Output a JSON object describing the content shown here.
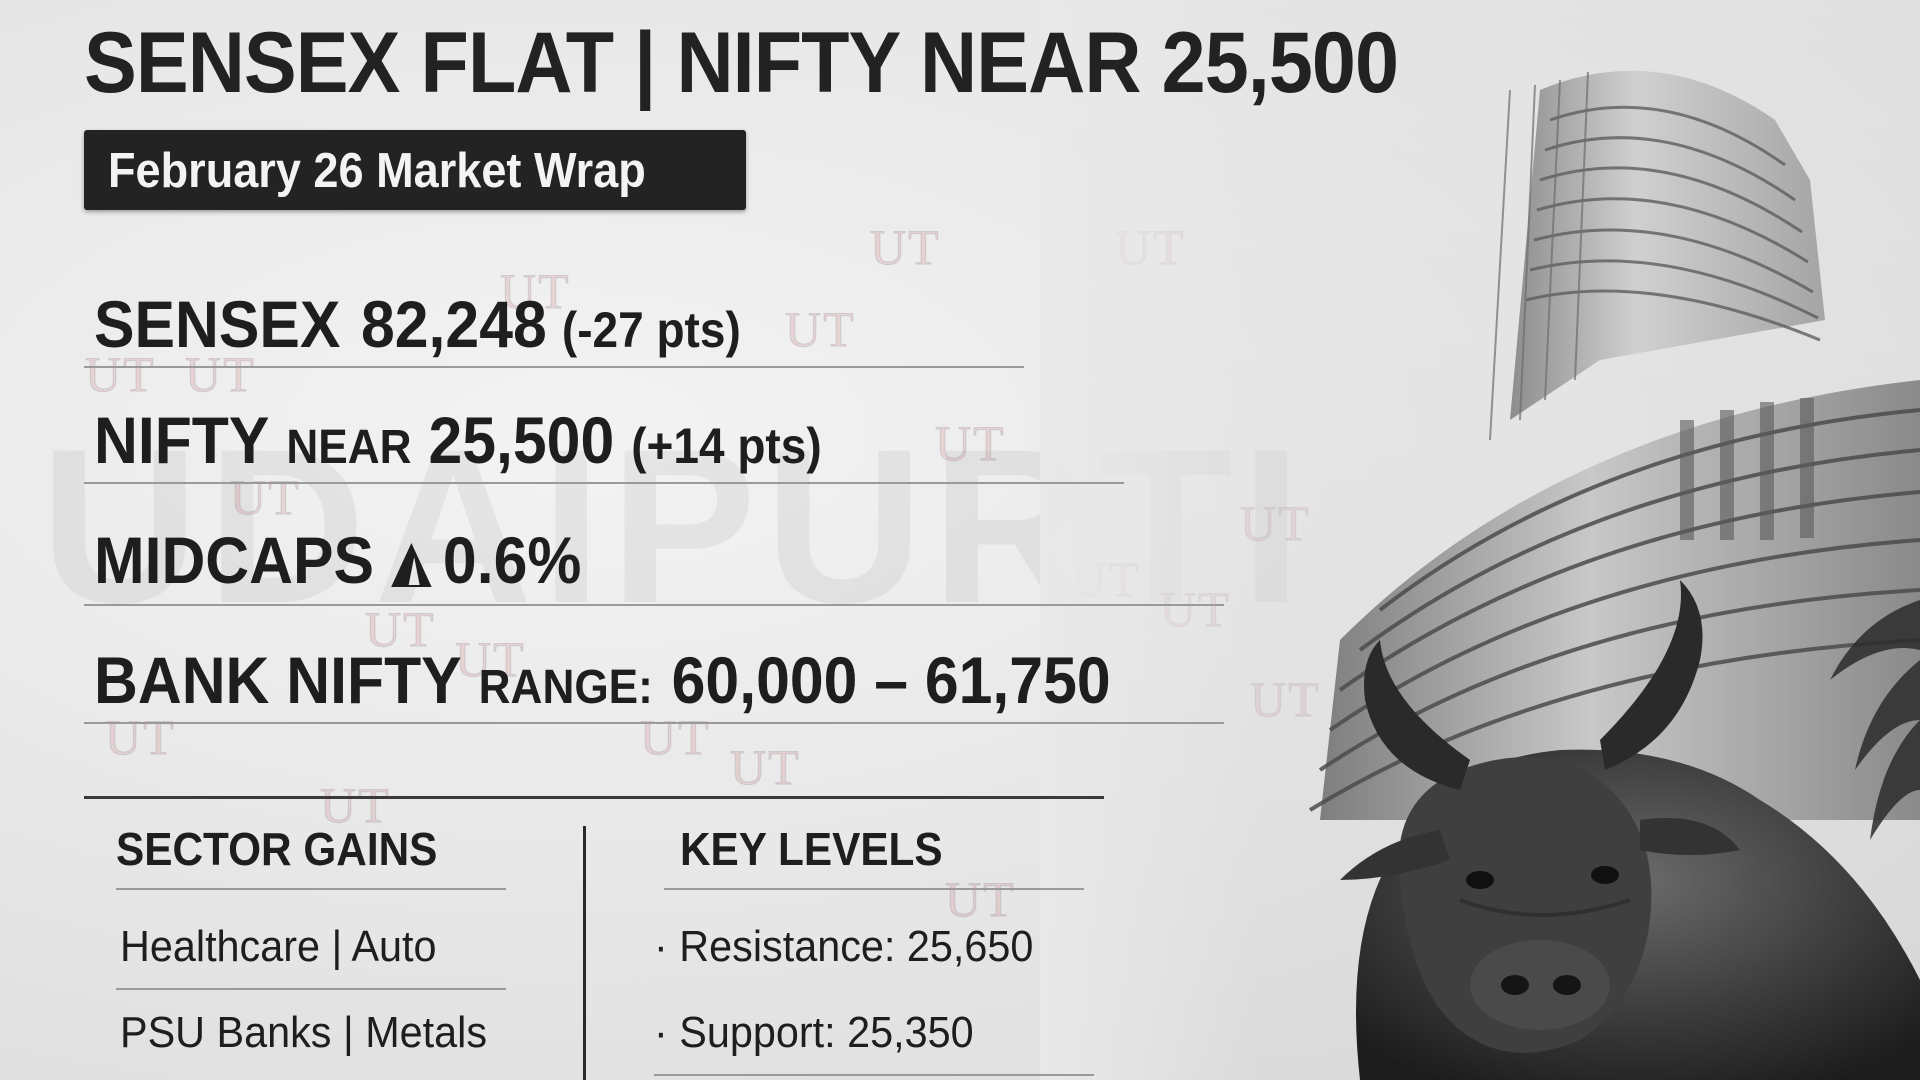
{
  "headline": "SENSEX FLAT | NIFTY NEAR 25,500",
  "date_tag": "February 26 Market Wrap",
  "stats": {
    "sensex": {
      "label": "SENSEX",
      "value": "82,248",
      "change": "(-27 pts)"
    },
    "nifty": {
      "label": "NIFTY",
      "qualifier": "NEAR",
      "value": "25,500",
      "change": "(+14 pts)"
    },
    "midcaps": {
      "label": "MIDCAPS",
      "icon": "up-triangle-icon",
      "value": "0.6%"
    },
    "bank_nifty": {
      "label": "BANK NIFTY",
      "qualifier": "RANGE:",
      "value": "60,000 – 61,750"
    }
  },
  "sector_gains": {
    "title": "SECTOR GAINS",
    "items": [
      "Healthcare | Auto",
      "PSU Banks | Metals"
    ]
  },
  "key_levels": {
    "title": "KEY LEVELS",
    "items": [
      "Resistance: 25,650",
      "Support: 25,350"
    ]
  },
  "watermark": {
    "big_text": "UDAIPURTI",
    "tag": "UT"
  },
  "colors": {
    "background": "#e9e9e9",
    "text": "#1e1e1e",
    "tag_bg": "#232323"
  }
}
